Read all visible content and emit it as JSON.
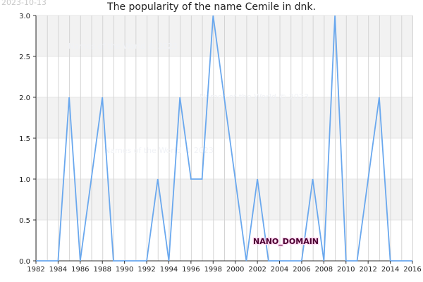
{
  "header": {
    "date": "2023-10-13",
    "title": "The popularity of the name Cemile in dnk."
  },
  "watermarks": [
    "Names of the World © 2023",
    "Names of the World © 2023",
    "Names of the World © 2023"
  ],
  "brand": "NANO_DOMAIN",
  "colors": {
    "line": "#6aa8ee",
    "band": "#f2f2f2",
    "grid": "#d4d4d4"
  },
  "chart_data": {
    "type": "line",
    "title": "The popularity of the name Cemile in dnk.",
    "xlabel": "",
    "ylabel": "",
    "xlim": [
      1982,
      2016
    ],
    "ylim": [
      0,
      3
    ],
    "xticks": [
      1982,
      1984,
      1986,
      1988,
      1990,
      1992,
      1994,
      1996,
      1998,
      2000,
      2002,
      2004,
      2006,
      2008,
      2010,
      2012,
      2014,
      2016
    ],
    "yticks": [
      "0.0",
      "0.5",
      "1.0",
      "1.5",
      "2.0",
      "2.5",
      "3.0"
    ],
    "grid": true,
    "x": [
      1982,
      1983,
      1984,
      1985,
      1986,
      1987,
      1988,
      1989,
      1990,
      1991,
      1992,
      1993,
      1994,
      1995,
      1996,
      1997,
      1998,
      1999,
      2000,
      2001,
      2002,
      2003,
      2004,
      2005,
      2006,
      2007,
      2008,
      2009,
      2010,
      2011,
      2012,
      2013,
      2014,
      2015,
      2016
    ],
    "values": [
      0,
      0,
      0,
      2,
      0,
      1,
      2,
      0,
      0,
      0,
      0,
      1,
      0,
      2,
      1,
      1,
      3,
      2,
      1,
      0,
      1,
      0,
      0,
      0,
      0,
      1,
      0,
      3,
      0,
      0,
      1,
      2,
      0,
      0,
      0
    ]
  }
}
